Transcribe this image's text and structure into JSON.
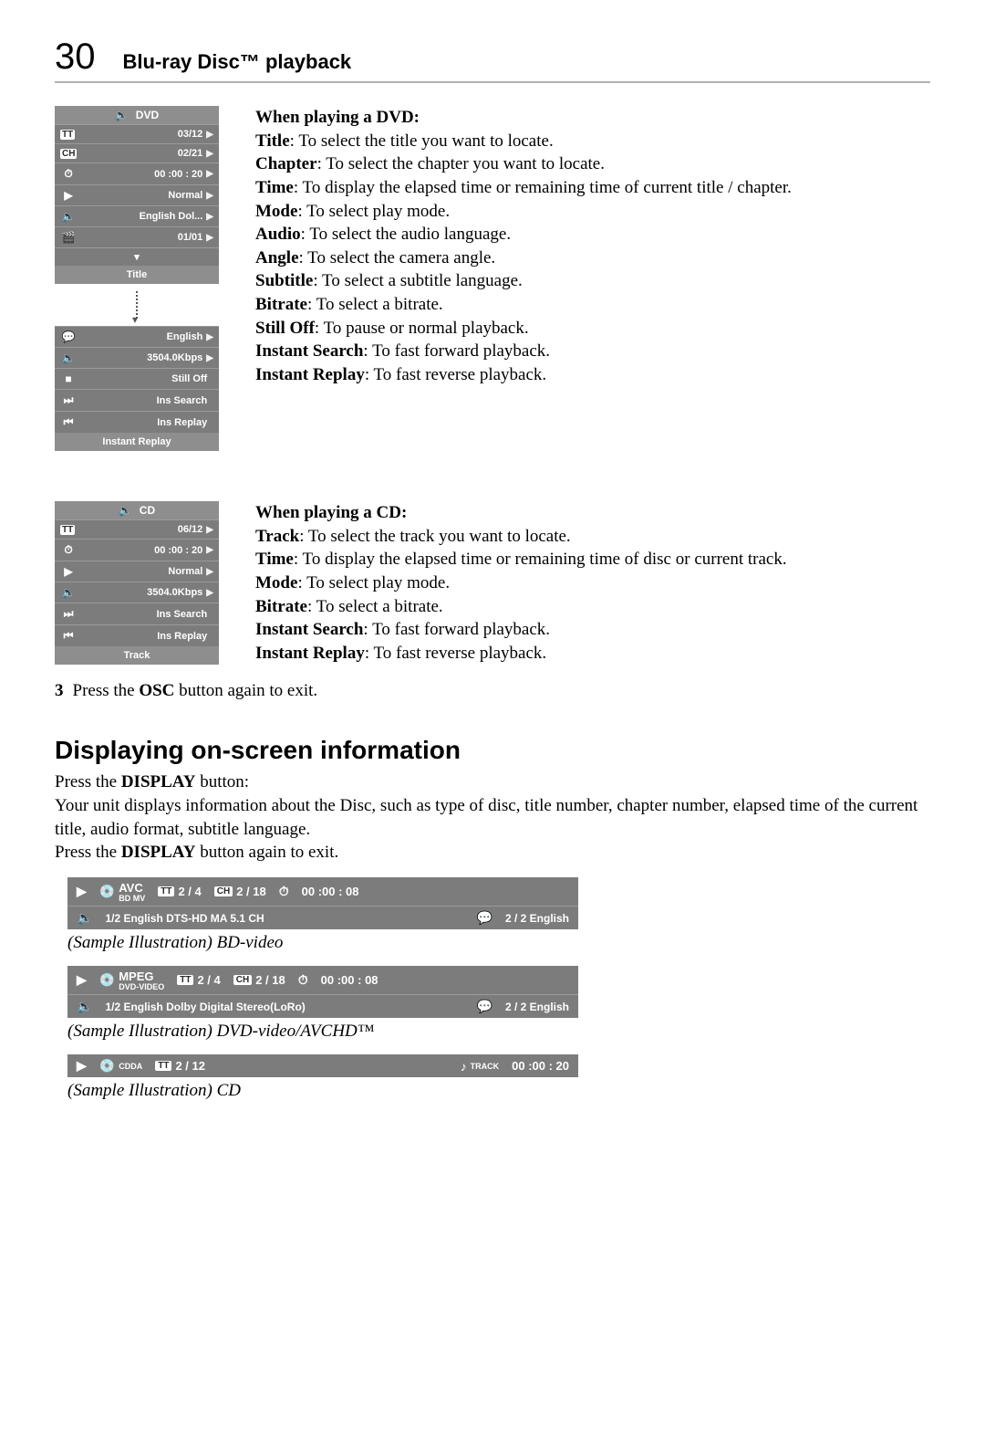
{
  "header": {
    "page_number": "30",
    "title": "Blu-ray Disc™ playback"
  },
  "dvd_menu": {
    "head_label": "DVD",
    "rows": [
      {
        "icon": "TT",
        "value": "03/12",
        "arrow": true,
        "tt": true
      },
      {
        "icon": "CH",
        "value": "02/21",
        "arrow": true,
        "tt": true
      },
      {
        "icon": "⏱",
        "value": "00 :00 : 20",
        "arrow": true
      },
      {
        "icon": "▶",
        "value": "Normal",
        "arrow": true
      },
      {
        "icon": "🔈",
        "value": "English Dol...",
        "arrow": true
      },
      {
        "icon": "🎬",
        "value": "01/01",
        "arrow": true
      }
    ],
    "footer": "Title"
  },
  "dvd_submenu": {
    "rows": [
      {
        "icon": "💬",
        "value": "English",
        "arrow": true
      },
      {
        "icon": "🔈",
        "value": "3504.0Kbps",
        "arrow": true
      },
      {
        "icon": "■",
        "value": "Still Off",
        "arrow": false
      },
      {
        "icon": "⏭",
        "value": "Ins Search",
        "arrow": false
      },
      {
        "icon": "⏮",
        "value": "Ins Replay",
        "arrow": false
      }
    ],
    "footer": "Instant Replay"
  },
  "cd_menu": {
    "head_label": "CD",
    "rows": [
      {
        "icon": "TT",
        "value": "06/12",
        "arrow": true,
        "tt": true
      },
      {
        "icon": "⏱",
        "value": "00 :00 : 20",
        "arrow": true
      },
      {
        "icon": "▶",
        "value": "Normal",
        "arrow": true
      },
      {
        "icon": "🔈",
        "value": "3504.0Kbps",
        "arrow": true
      },
      {
        "icon": "⏭",
        "value": "Ins Search",
        "arrow": false
      },
      {
        "icon": "⏮",
        "value": "Ins Replay",
        "arrow": false
      }
    ],
    "footer": "Track"
  },
  "dvd_section": {
    "heading": "When playing a DVD:",
    "items": [
      {
        "term": "Title",
        "desc": ": To select the title you want to locate."
      },
      {
        "term": "Chapter",
        "desc": ": To select the chapter you want to locate."
      },
      {
        "term": "Time",
        "desc": ": To display the elapsed time or remaining time of current title / chapter."
      },
      {
        "term": "Mode",
        "desc": ": To select play mode."
      },
      {
        "term": "Audio",
        "desc": ": To select the audio language."
      },
      {
        "term": "Angle",
        "desc": ": To select the camera angle."
      },
      {
        "term": "Subtitle",
        "desc": ": To select a subtitle language."
      },
      {
        "term": "Bitrate",
        "desc": ": To select a bitrate."
      },
      {
        "term": "Still Off",
        "desc": ": To pause or normal playback."
      },
      {
        "term": "Instant Search",
        "desc": ": To fast forward playback."
      },
      {
        "term": "Instant Replay",
        "desc": ": To fast reverse playback."
      }
    ]
  },
  "cd_section": {
    "heading": "When playing a CD:",
    "items": [
      {
        "term": "Track",
        "desc": ": To select the track you want to locate."
      },
      {
        "term": "Time",
        "desc": ": To display the elapsed time or remaining time of disc or current track."
      },
      {
        "term": "Mode",
        "desc": ": To select play mode."
      },
      {
        "term": "Bitrate",
        "desc": ": To select a bitrate."
      },
      {
        "term": "Instant Search",
        "desc": ": To fast forward playback."
      },
      {
        "term": "Instant Replay",
        "desc": ": To fast reverse playback."
      }
    ]
  },
  "step3": {
    "num": "3",
    "pre": "Press the ",
    "bold": "OSC",
    "post": " button again to exit."
  },
  "display_section": {
    "heading": "Displaying on-screen information",
    "l1_pre": "Press the ",
    "l1_bold": "DISPLAY",
    "l1_post": " button:",
    "body": "Your unit displays information about the Disc, such as type of disc, title number, chapter number, elapsed time of the current title, audio format, subtitle language.",
    "l3_pre": "Press the ",
    "l3_bold": "DISPLAY",
    "l3_post": " button again to exit."
  },
  "osd_bd": {
    "disc_icon_label": "BD MV",
    "codec": "AVC",
    "tt": "2 / 4",
    "ch": "2 / 18",
    "time": "00 :00 : 08",
    "audio": "1/2 English DTS-HD MA 5.1 CH",
    "sub": "2 / 2  English",
    "caption": "(Sample Illustration) BD-video"
  },
  "osd_dvd": {
    "disc_icon_label": "DVD-VIDEO",
    "codec": "MPEG",
    "tt": "2 / 4",
    "ch": "2 / 18",
    "time": "00 :00 : 08",
    "audio": "1/2 English Dolby Digital Stereo(LoRo)",
    "sub": "2 / 2  English",
    "caption": "(Sample Illustration) DVD-video/AVCHD™"
  },
  "osd_cd": {
    "disc_icon_label": "CDDA",
    "tt": "2 / 12",
    "track_label": "TRACK",
    "time": "00 :00 : 20",
    "caption": "(Sample Illustration) CD"
  },
  "colors": {
    "menu_bg": "#7c7c7c",
    "menu_head": "#8e8e8e",
    "rule": "#b0b0b0"
  }
}
